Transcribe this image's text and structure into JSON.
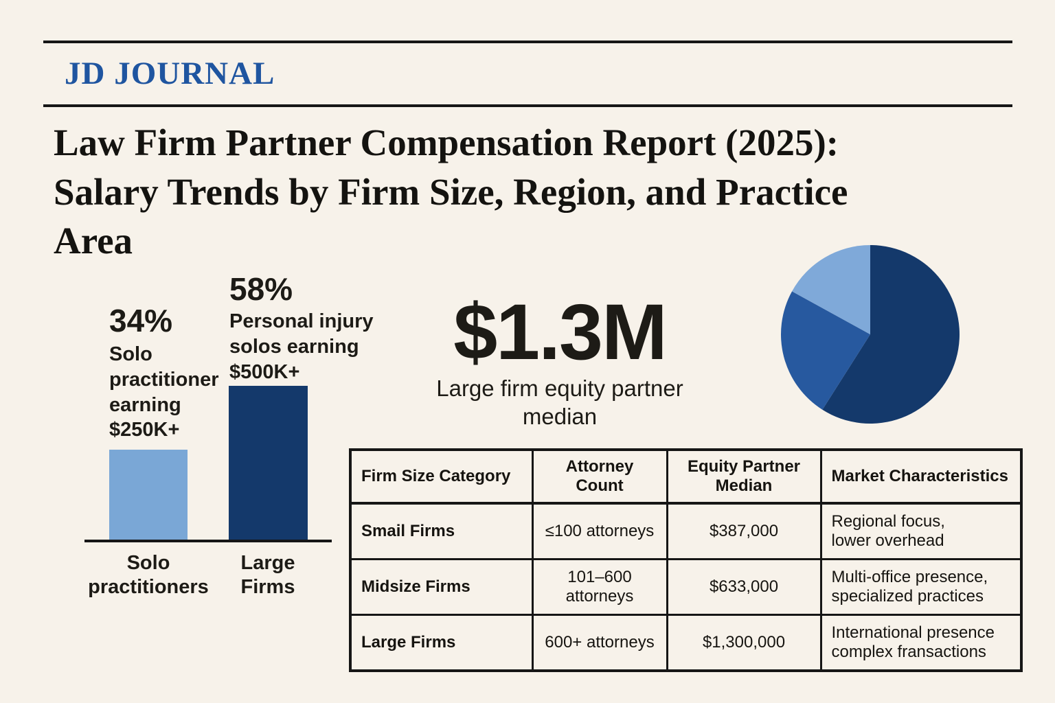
{
  "page": {
    "background_color": "#f7f2ea",
    "rule_color": "#161616"
  },
  "masthead": {
    "title": "JD JOURNAL",
    "color": "#1f55a0"
  },
  "headline": {
    "text": "Law Firm Partner Compensation Report (2025):\nSalary Trends by Firm Size, Region, and Practice\nArea"
  },
  "stat_blocks": {
    "solo": {
      "percent": "34%",
      "caption": "Solo\npractitioner\nearning\n$250K+",
      "axis_label": "Solo\npractitioners",
      "bar_color": "#7aa7d6"
    },
    "personal_injury": {
      "percent": "58%",
      "caption": "Personal injury\nsolos earning\n$500K+",
      "axis_label": "Large\nFirms",
      "bar_color": "#14396b"
    },
    "median": {
      "value": "$1.3M",
      "caption": "Large firm equity partner\nmedian"
    }
  },
  "chart_data": [
    {
      "type": "bar",
      "title": "",
      "xlabel": "",
      "ylabel": "",
      "categories": [
        "Solo practitioners",
        "Large Firms"
      ],
      "values": [
        34,
        58
      ],
      "value_labels": [
        "34%",
        "58%"
      ],
      "annotations": [
        "Solo practitioner earning $250K+",
        "Personal injury solos earning $500K+"
      ],
      "colors": [
        "#7aa7d6",
        "#14396b"
      ],
      "ylim": [
        0,
        70
      ],
      "grid": false,
      "legend": "none"
    },
    {
      "type": "pie",
      "title": "",
      "values": [
        59,
        24,
        17
      ],
      "labels": [
        "",
        "",
        ""
      ],
      "colors": [
        "#14396b",
        "#27599f",
        "#7fa9d9"
      ],
      "start_angle_deg": 0,
      "direction": "clockwise",
      "legend": "none"
    },
    {
      "type": "table",
      "columns": [
        "Firm Size Category",
        "Attorney Count",
        "Equity Partner Median",
        "Market Characteristics"
      ],
      "rows": [
        [
          "Smail Firms",
          "≤100 attorneys",
          "$387,000",
          "Regional focus, lower overhead"
        ],
        [
          "Midsize Firms",
          "101–600 attorneys",
          "$633,000",
          "Multi-office presence, specialized practices"
        ],
        [
          "Large Firms",
          "600+ attorneys",
          "$1,300,000",
          "International presence complex fransactions"
        ]
      ]
    }
  ],
  "table": {
    "headers": [
      "Firm Size Category",
      "Attorney Count",
      "Equity Partner\nMedian",
      "Market Characteristics"
    ],
    "rows": [
      [
        "Smail Firms",
        "≤100 attorneys",
        "$387,000",
        "Regional focus,\nlower overhead"
      ],
      [
        "Midsize Firms",
        "101–600 attorneys",
        "$633,000",
        "Multi-office presence,\nspecialized practices"
      ],
      [
        "Large Firms",
        "600+ attorneys",
        "$1,300,000",
        "International presence\ncomplex fransactions"
      ]
    ]
  }
}
